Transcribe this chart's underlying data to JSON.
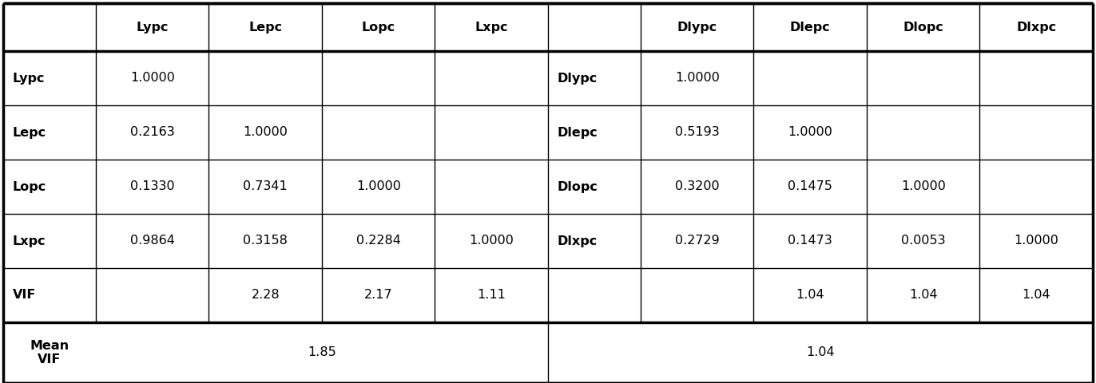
{
  "left_headers": [
    "",
    "Lypc",
    "Lepc",
    "Lopc",
    "Lxpc"
  ],
  "right_headers": [
    "",
    "Dlypc",
    "Dlepc",
    "Dlopc",
    "Dlxpc"
  ],
  "left_rows": [
    [
      "Lypc",
      "1.0000",
      "",
      "",
      ""
    ],
    [
      "Lepc",
      "0.2163",
      "1.0000",
      "",
      ""
    ],
    [
      "Lopc",
      "0.1330",
      "0.7341",
      "1.0000",
      ""
    ],
    [
      "Lxpc",
      "0.9864",
      "0.3158",
      "0.2284",
      "1.0000"
    ],
    [
      "VIF",
      "",
      "2.28",
      "2.17",
      "1.11"
    ]
  ],
  "right_rows": [
    [
      "Dlypc",
      "1.0000",
      "",
      "",
      ""
    ],
    [
      "Dlepc",
      "0.5193",
      "1.0000",
      "",
      ""
    ],
    [
      "Dlopc",
      "0.3200",
      "0.1475",
      "1.0000",
      ""
    ],
    [
      "Dlxpc",
      "0.2729",
      "0.1473",
      "0.0053",
      "1.0000"
    ],
    [
      "",
      "",
      "1.04",
      "1.04",
      "1.04"
    ]
  ],
  "mean_vif_left": "1.85",
  "mean_vif_right": "1.04",
  "mean_vif_label": "Mean\nVIF",
  "bg_color": "#ffffff",
  "text_color": "#000000",
  "header_font_size": 11.5,
  "cell_font_size": 11.5,
  "bold_rows": [
    "Lypc",
    "Lepc",
    "Lopc",
    "Lxpc",
    "VIF",
    "Dlypc",
    "Dlepc",
    "Dlopc",
    "Dlxpc"
  ]
}
